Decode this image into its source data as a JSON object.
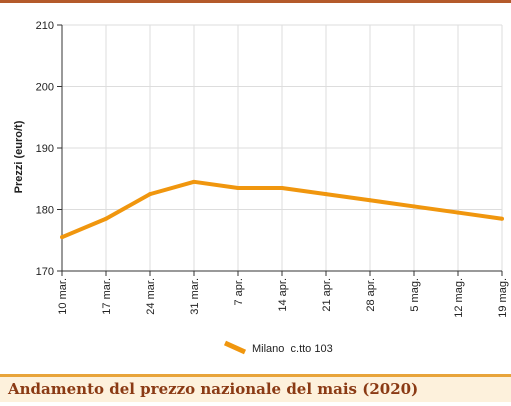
{
  "caption": "Andamento del prezzo nazionale del mais (2020)",
  "colors": {
    "series": "#f0960e",
    "grid": "#dddddd",
    "rule": "#b45a2a",
    "caption_text": "#8a3a14",
    "caption_bg": "#fdf1dc",
    "caption_border": "#e8a43a"
  },
  "chart_data": {
    "type": "line",
    "title": "",
    "xlabel": "",
    "ylabel": "Prezzi (euro/t)",
    "ylim": [
      170,
      210
    ],
    "yticks": [
      170,
      180,
      190,
      200,
      210
    ],
    "grid": true,
    "legend_position": "bottom-center",
    "categories": [
      "10 mar.",
      "17 mar.",
      "24 mar.",
      "31 mar.",
      "7 apr.",
      "14 apr.",
      "21 apr.",
      "28 apr.",
      "5 mag.",
      "12 mag.",
      "19 mag."
    ],
    "series": [
      {
        "name": "Milano  c.tto 103",
        "values": [
          175.5,
          178.5,
          182.5,
          184.5,
          183.5,
          183.5,
          182.5,
          181.5,
          180.5,
          179.5,
          178.5
        ]
      }
    ]
  }
}
